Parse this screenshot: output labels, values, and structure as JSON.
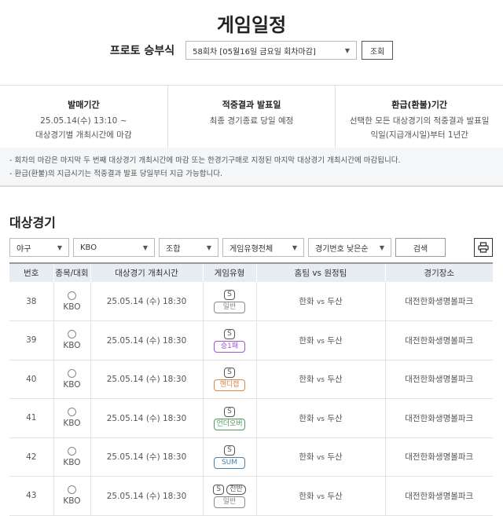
{
  "title": "게임일정",
  "round_select": {
    "label": "프로토 승부식",
    "value": "58회차 [05월16일 금요일 회차마감]",
    "button": "조회"
  },
  "info": [
    {
      "title": "발매기간",
      "lines": [
        "25.05.14(수) 13:10 ~",
        "대상경기별 개최시간에 마감"
      ]
    },
    {
      "title": "적중결과 발표일",
      "lines": [
        "최종 경기종료 당일 예정",
        ""
      ]
    },
    {
      "title": "환급(환불)기간",
      "lines": [
        "선택한 모든 대상경기의 적중결과 발표일",
        "익일(지급개시일)부터 1년간"
      ]
    }
  ],
  "notes": [
    "- 회차의 마감은 마지막 두 번째 대상경기 개최시간에 마감 또는 한경기구매로 지정된 마지막 대상경기 개최시간에 마감됩니다.",
    "- 환급(환불)의 지급시기는 적중결과 발표 당일부터 지급 가능합니다."
  ],
  "section_title": "대상경기",
  "filters": [
    "야구",
    "KBO",
    "조합",
    "게임유형전체",
    "경기번호 낮은순"
  ],
  "search_button": "검색",
  "columns": [
    "번호",
    "종목/대회",
    "대상경기 개최시간",
    "게임유형",
    "홈팀 vs 원정팀",
    "경기장소"
  ],
  "rows": [
    {
      "no": "38",
      "league": "KBO",
      "time": "25.05.14 (수) 18:30",
      "s": "S",
      "half": "",
      "type": "일반",
      "color": "#888888",
      "home": "한화",
      "vs": "vs",
      "away": "두산",
      "venue": "대전한화생명볼파크"
    },
    {
      "no": "39",
      "league": "KBO",
      "time": "25.05.14 (수) 18:30",
      "s": "S",
      "half": "",
      "type": "승1패",
      "color": "#9b59c9",
      "home": "한화",
      "vs": "vs",
      "away": "두산",
      "venue": "대전한화생명볼파크"
    },
    {
      "no": "40",
      "league": "KBO",
      "time": "25.05.14 (수) 18:30",
      "s": "S",
      "half": "",
      "type": "핸디캡",
      "color": "#d9874a",
      "home": "한화",
      "vs": "vs",
      "away": "두산",
      "venue": "대전한화생명볼파크"
    },
    {
      "no": "41",
      "league": "KBO",
      "time": "25.05.14 (수) 18:30",
      "s": "S",
      "half": "",
      "type": "언더오버",
      "color": "#4f9a5a",
      "home": "한화",
      "vs": "vs",
      "away": "두산",
      "venue": "대전한화생명볼파크"
    },
    {
      "no": "42",
      "league": "KBO",
      "time": "25.05.14 (수) 18:30",
      "s": "S",
      "half": "",
      "type": "SUM",
      "color": "#4a7fa8",
      "home": "한화",
      "vs": "vs",
      "away": "두산",
      "venue": "대전한화생명볼파크"
    },
    {
      "no": "43",
      "league": "KBO",
      "time": "25.05.14 (수) 18:30",
      "s": "S",
      "half": "전반",
      "type": "일반",
      "color": "#888888",
      "home": "한화",
      "vs": "vs",
      "away": "두산",
      "venue": "대전한화생명볼파크"
    }
  ]
}
